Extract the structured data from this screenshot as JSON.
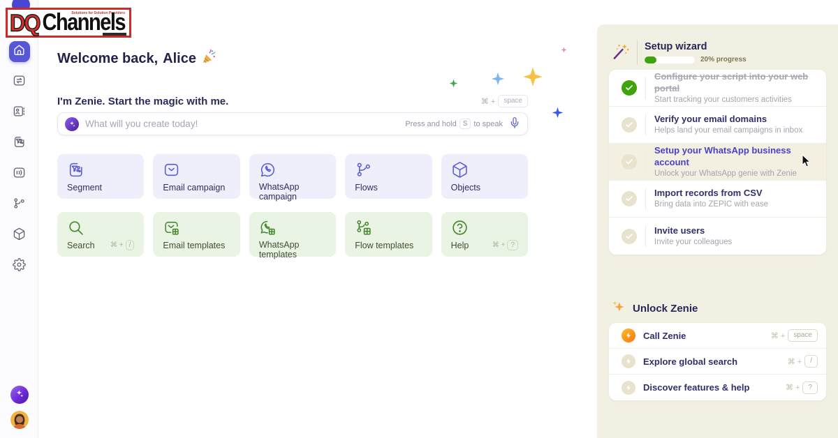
{
  "logo": {
    "dq": "DQ",
    "channels": "Channels",
    "tagline": "Solutions for Solution Providers"
  },
  "sidebar": {
    "icons": [
      "home",
      "transfer",
      "contacts",
      "segments",
      "campaigns",
      "flows",
      "objects",
      "settings"
    ],
    "bottom": [
      "zenie-sparkle",
      "user-avatar"
    ]
  },
  "welcome": {
    "prefix": "Welcome back,",
    "name": "Alice"
  },
  "zenie_bar": {
    "intro": "I'm Zenie. Start the magic with me.",
    "mod": "⌘ +",
    "key": "space",
    "placeholder": "What will you create today!",
    "hold_prefix": "Press and hold",
    "hold_key": "S",
    "hold_suffix": "to speak"
  },
  "primary_actions": [
    {
      "label": "Segment"
    },
    {
      "label": "Email campaign"
    },
    {
      "label": "WhatsApp campaign"
    },
    {
      "label": "Flows"
    },
    {
      "label": "Objects"
    }
  ],
  "secondary_actions": [
    {
      "label": "Search",
      "mod": "⌘ +",
      "key": "/"
    },
    {
      "label": "Email templates"
    },
    {
      "label": "WhatsApp templates"
    },
    {
      "label": "Flow templates"
    },
    {
      "label": "Help",
      "mod": "⌘ +",
      "key": "?"
    }
  ],
  "setup_wizard": {
    "title": "Setup wizard",
    "progress_pct": 20,
    "progress_label": "20% progress",
    "items": [
      {
        "title": "Configure your script into your web portal",
        "subtitle": "Start tracking your customers activities",
        "status": "done"
      },
      {
        "title": "Verify your email domains",
        "subtitle": "Helps land your email campaigns in inbox",
        "status": "todo"
      },
      {
        "title": "Setup your WhatsApp business account",
        "subtitle": "Unlock your WhatsApp genie with Zenie",
        "status": "todo",
        "highlighted": true
      },
      {
        "title": "Import records from CSV",
        "subtitle": "Bring data into ZEPIC with ease",
        "status": "todo"
      },
      {
        "title": "Invite users",
        "subtitle": "Invite your colleagues",
        "status": "todo"
      }
    ]
  },
  "unlock": {
    "title": "Unlock Zenie",
    "items": [
      {
        "label": "Call Zenie",
        "mod": "⌘ +",
        "key": "space"
      },
      {
        "label": "Explore global search",
        "mod": "⌘ +",
        "key": "/"
      },
      {
        "label": "Discover features & help",
        "mod": "⌘ +",
        "key": "?"
      }
    ]
  },
  "colors": {
    "accent_indigo": "#5656D6",
    "success_green": "#3EA30C",
    "panel_beige": "#F2EFE3"
  }
}
